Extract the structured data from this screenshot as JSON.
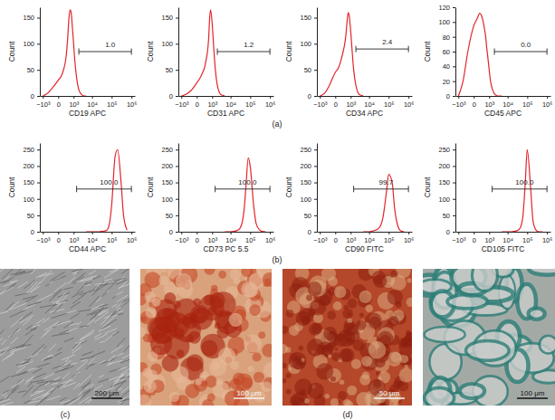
{
  "chart_data": [
    {
      "type": "line",
      "x_label": "CD19 APC",
      "y_label": "Count",
      "color": "#e3242b",
      "log": "x",
      "x": [
        -1000,
        -500,
        -200,
        0,
        100,
        200,
        300,
        400,
        500,
        600,
        700,
        800,
        1000,
        1200,
        1500,
        2000,
        2500,
        3000,
        4000,
        5000
      ],
      "values": [
        0,
        5,
        15,
        30,
        40,
        55,
        75,
        110,
        150,
        165,
        160,
        140,
        100,
        65,
        35,
        12,
        5,
        2,
        0,
        0
      ],
      "xlim": [
        -1500,
        1500000
      ],
      "xticks": [
        {
          "value": -1000,
          "label": "−10³"
        },
        0,
        {
          "value": 1000,
          "label": "10³"
        },
        {
          "value": 10000,
          "label": "10⁴"
        },
        {
          "value": 100000,
          "label": "10⁵"
        },
        {
          "value": 1000000,
          "label": "10⁶"
        }
      ],
      "ylim": [
        0,
        170
      ],
      "yticks": [
        0,
        50,
        100,
        150
      ],
      "gate": {
        "xlim": [
          2000,
          1000000
        ],
        "y": 85,
        "label": "1.0"
      }
    },
    {
      "type": "line",
      "x_label": "CD31 APC",
      "y_label": "Count",
      "color": "#e3242b",
      "log": "x",
      "x": [
        -1000,
        -500,
        -200,
        0,
        100,
        200,
        300,
        400,
        500,
        600,
        700,
        800,
        1000,
        1200,
        1500,
        2000,
        2500,
        3000,
        4000,
        5000
      ],
      "values": [
        0,
        3,
        10,
        25,
        35,
        45,
        55,
        70,
        85,
        110,
        150,
        165,
        140,
        100,
        55,
        20,
        8,
        3,
        1,
        0
      ],
      "xlim": [
        -1500,
        1500000
      ],
      "xticks": [
        {
          "value": -1000,
          "label": "−10³"
        },
        0,
        {
          "value": 1000,
          "label": "10³"
        },
        {
          "value": 10000,
          "label": "10⁴"
        },
        {
          "value": 100000,
          "label": "10⁵"
        },
        {
          "value": 1000000,
          "label": "10⁶"
        }
      ],
      "ylim": [
        0,
        170
      ],
      "yticks": [
        0,
        50,
        100,
        150
      ],
      "gate": {
        "xlim": [
          2000,
          1000000
        ],
        "y": 85,
        "label": "1.2"
      }
    },
    {
      "type": "line",
      "x_label": "CD34 APC",
      "y_label": "Count",
      "color": "#e3242b",
      "log": "x",
      "x": [
        -1000,
        -500,
        -200,
        0,
        100,
        200,
        300,
        400,
        500,
        600,
        700,
        800,
        1000,
        1200,
        1500,
        2000,
        2500,
        3000,
        4000,
        5000
      ],
      "values": [
        0,
        5,
        20,
        45,
        55,
        70,
        85,
        100,
        120,
        145,
        160,
        155,
        125,
        90,
        50,
        20,
        8,
        3,
        1,
        0
      ],
      "xlim": [
        -1500,
        1500000
      ],
      "xticks": [
        {
          "value": -1000,
          "label": "−10³"
        },
        0,
        {
          "value": 1000,
          "label": "10³"
        },
        {
          "value": 10000,
          "label": "10⁴"
        },
        {
          "value": 100000,
          "label": "10⁵"
        },
        {
          "value": 1000000,
          "label": "10⁶"
        }
      ],
      "ylim": [
        0,
        170
      ],
      "yticks": [
        0,
        50,
        100,
        150
      ],
      "gate": {
        "xlim": [
          2000,
          1000000
        ],
        "y": 90,
        "label": "2.4"
      }
    },
    {
      "type": "line",
      "x_label": "CD45 APC",
      "y_label": "Count",
      "color": "#e3242b",
      "log": "x",
      "x": [
        -1000,
        -500,
        -200,
        0,
        100,
        200,
        300,
        400,
        500,
        600,
        700,
        800,
        1000,
        1200,
        1500,
        2000,
        2500,
        3000,
        4000,
        5000
      ],
      "values": [
        0,
        20,
        60,
        95,
        105,
        112,
        108,
        100,
        90,
        80,
        65,
        55,
        35,
        20,
        10,
        3,
        1,
        0,
        0,
        0
      ],
      "xlim": [
        -1500,
        1500000
      ],
      "xticks": [
        {
          "value": -1000,
          "label": "−10³"
        },
        0,
        {
          "value": 1000,
          "label": "10³"
        },
        {
          "value": 10000,
          "label": "10⁴"
        },
        {
          "value": 100000,
          "label": "10⁵"
        },
        {
          "value": 1000000,
          "label": "10⁶"
        }
      ],
      "ylim": [
        0,
        120
      ],
      "yticks": [
        0,
        20,
        40,
        60,
        80,
        100,
        120
      ],
      "gate": {
        "xlim": [
          2000,
          1000000
        ],
        "y": 60,
        "label": "0.0"
      }
    },
    {
      "type": "line",
      "x_label": "CD44 APC",
      "y_label": "Count",
      "color": "#e3242b",
      "log": "x",
      "x": [
        5000,
        10000,
        15000,
        20000,
        30000,
        40000,
        50000,
        60000,
        80000,
        100000,
        150000,
        200000,
        300000,
        400000,
        600000
      ],
      "values": [
        0,
        0,
        0,
        0,
        1,
        2,
        3,
        6,
        30,
        80,
        230,
        250,
        150,
        50,
        5
      ],
      "xlim": [
        -1500,
        1500000
      ],
      "xticks": [
        {
          "value": -1000,
          "label": "−10³"
        },
        0,
        {
          "value": 1000,
          "label": "10³"
        },
        {
          "value": 10000,
          "label": "10⁴"
        },
        {
          "value": 100000,
          "label": "10⁵"
        },
        {
          "value": 1000000,
          "label": "10⁶"
        }
      ],
      "ylim": [
        0,
        270
      ],
      "yticks": [
        0,
        50,
        100,
        150,
        200,
        250
      ],
      "gate": {
        "xlim": [
          1500,
          1000000
        ],
        "y": 130,
        "label": "100.0"
      }
    },
    {
      "type": "line",
      "x_label": "CD73 PC 5.5",
      "y_label": "Count",
      "color": "#e3242b",
      "log": "x",
      "x": [
        5000,
        10000,
        15000,
        20000,
        30000,
        40000,
        50000,
        60000,
        80000,
        100000,
        150000,
        200000,
        300000,
        400000,
        600000
      ],
      "values": [
        0,
        0,
        1,
        3,
        10,
        30,
        70,
        130,
        225,
        200,
        80,
        25,
        5,
        1,
        0
      ],
      "xlim": [
        -1500,
        1500000
      ],
      "xticks": [
        {
          "value": -1000,
          "label": "−10³"
        },
        0,
        {
          "value": 1000,
          "label": "10³"
        },
        {
          "value": 10000,
          "label": "10⁴"
        },
        {
          "value": 100000,
          "label": "10⁵"
        },
        {
          "value": 1000000,
          "label": "10⁶"
        }
      ],
      "ylim": [
        0,
        270
      ],
      "yticks": [
        0,
        50,
        100,
        150,
        200,
        250
      ],
      "gate": {
        "xlim": [
          1500,
          1000000
        ],
        "y": 130,
        "label": "100.0"
      }
    },
    {
      "type": "line",
      "x_label": "CD90 FITC",
      "y_label": "Count",
      "color": "#e3242b",
      "log": "x",
      "x": [
        5000,
        10000,
        15000,
        20000,
        30000,
        40000,
        50000,
        60000,
        80000,
        100000,
        150000,
        200000,
        300000,
        400000,
        600000
      ],
      "values": [
        0,
        0,
        2,
        4,
        10,
        20,
        40,
        70,
        130,
        175,
        150,
        70,
        15,
        3,
        0
      ],
      "xlim": [
        -1500,
        1500000
      ],
      "xticks": [
        {
          "value": -1000,
          "label": "−10³"
        },
        0,
        {
          "value": 1000,
          "label": "10³"
        },
        {
          "value": 10000,
          "label": "10⁴"
        },
        {
          "value": 100000,
          "label": "10⁵"
        },
        {
          "value": 1000000,
          "label": "10⁶"
        }
      ],
      "ylim": [
        0,
        270
      ],
      "yticks": [
        0,
        50,
        100,
        150,
        200,
        250
      ],
      "gate": {
        "xlim": [
          1500,
          1000000
        ],
        "y": 130,
        "label": "99.7"
      }
    },
    {
      "type": "line",
      "x_label": "CD105 FITC",
      "y_label": "Count",
      "color": "#e3242b",
      "log": "x",
      "x": [
        5000,
        10000,
        15000,
        20000,
        30000,
        40000,
        50000,
        60000,
        80000,
        100000,
        150000,
        200000,
        300000,
        400000,
        600000
      ],
      "values": [
        0,
        0,
        0,
        1,
        3,
        8,
        20,
        45,
        150,
        250,
        130,
        30,
        3,
        0,
        0
      ],
      "xlim": [
        -1500,
        1500000
      ],
      "xticks": [
        {
          "value": -1000,
          "label": "−10³"
        },
        0,
        {
          "value": 1000,
          "label": "10³"
        },
        {
          "value": 10000,
          "label": "10⁴"
        },
        {
          "value": 100000,
          "label": "10⁵"
        },
        {
          "value": 1000000,
          "label": "10⁶"
        }
      ],
      "ylim": [
        0,
        270
      ],
      "yticks": [
        0,
        50,
        100,
        150,
        200,
        250
      ],
      "gate": {
        "xlim": [
          1500,
          1000000
        ],
        "y": 130,
        "label": "100.0"
      }
    }
  ],
  "figure": {
    "panel_labels": [
      "(a)",
      "(b)",
      "(c)",
      "(d)"
    ],
    "images": [
      {
        "scale_bar": "200 μm"
      },
      {
        "scale_bar": "100 μm"
      },
      {
        "scale_bar": "50 μm"
      },
      {
        "scale_bar": "100 μm"
      }
    ]
  }
}
